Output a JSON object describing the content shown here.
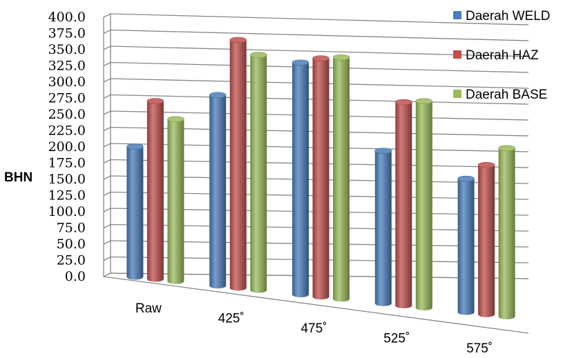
{
  "chart_data": {
    "type": "bar",
    "style": "3d-cylinder",
    "ylabel": "BHN",
    "xlabel": "",
    "categories": [
      "Raw",
      "425˚",
      "475˚",
      "525˚",
      "575˚"
    ],
    "ylim": [
      0,
      400
    ],
    "yticks": [
      "0.0",
      "25.0",
      "50.0",
      "75.0",
      "100.0",
      "125.0",
      "150.0",
      "175.0",
      "200.0",
      "225.0",
      "250.0",
      "275.0",
      "300.0",
      "325.0",
      "350.0",
      "375.0",
      "400.0"
    ],
    "ytick_step": 25,
    "grid": true,
    "legend_position": "right",
    "series": [
      {
        "name": "Daerah WELD",
        "values": [
          205,
          300,
          365,
          240,
          210
        ],
        "color": "#4a7ebb"
      },
      {
        "name": "Daerah HAZ",
        "values": [
          280,
          390,
          375,
          320,
          235
        ],
        "color": "#c0504d"
      },
      {
        "name": "Daerah BASE",
        "values": [
          255,
          370,
          380,
          325,
          265
        ],
        "color": "#9bbb59"
      }
    ]
  }
}
